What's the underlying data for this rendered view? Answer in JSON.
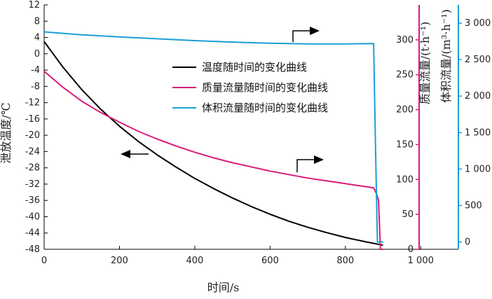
{
  "chart_data": {
    "type": "line",
    "xlabel": "时间/s",
    "x_ticks": [
      0,
      200,
      400,
      600,
      800,
      1000
    ],
    "x_tick_labels": [
      "0",
      "200",
      "400",
      "600",
      "800",
      "1 000"
    ],
    "xlim": [
      0,
      1100
    ],
    "axes": {
      "left": {
        "label": "泄放温度/℃",
        "ylim": [
          -48,
          12
        ],
        "ticks": [
          12,
          8,
          4,
          0,
          -4,
          -8,
          -12,
          -16,
          -20,
          -24,
          -28,
          -32,
          -36,
          -40,
          -44,
          -48
        ],
        "tick_labels": [
          "12",
          "8",
          "4",
          "0",
          "-4",
          "-8",
          "-12",
          "-16",
          "-20",
          "-24",
          "-28",
          "-32",
          "-36",
          "-40",
          "-44",
          "-48"
        ],
        "color": "#000000"
      },
      "right1": {
        "label": "质量流量/(t·h⁻¹)",
        "ylim": [
          0,
          350
        ],
        "ticks": [
          0,
          50,
          100,
          150,
          200,
          250,
          300
        ],
        "tick_labels": [
          "0",
          "50",
          "100",
          "150",
          "200",
          "250",
          "300"
        ],
        "color": "#d81b7a"
      },
      "right2": {
        "label": "体积流量/(m³·h⁻¹)",
        "ylim": [
          -100,
          3250
        ],
        "ticks": [
          0,
          500,
          1000,
          1500,
          2000,
          2500,
          3000
        ],
        "tick_labels": [
          "0",
          "500",
          "1 000",
          "1 500",
          "2 000",
          "2 500",
          "3 000"
        ],
        "color": "#1a9fd4"
      }
    },
    "series": [
      {
        "name": "温度随时间的变化曲线",
        "axis": "left",
        "color": "#000000",
        "x": [
          0,
          50,
          100,
          150,
          200,
          250,
          300,
          350,
          400,
          450,
          500,
          550,
          600,
          650,
          700,
          750,
          800,
          850,
          900
        ],
        "y": [
          3,
          -3.3,
          -8.8,
          -13.6,
          -17.8,
          -21.5,
          -24.8,
          -27.8,
          -30.6,
          -33.1,
          -35.4,
          -37.5,
          -39.4,
          -41.1,
          -42.6,
          -43.9,
          -45.1,
          -46.1,
          -47
        ]
      },
      {
        "name": "质量流量随时间的变化曲线",
        "axis": "right1",
        "color": "#d81b7a",
        "x": [
          0,
          50,
          100,
          150,
          200,
          250,
          300,
          350,
          400,
          450,
          500,
          550,
          600,
          650,
          700,
          750,
          800,
          850,
          875,
          882,
          888,
          893,
          900
        ],
        "y": [
          255,
          232,
          212,
          196,
          182,
          169,
          158,
          148,
          139,
          131,
          124,
          118,
          112,
          107,
          102,
          98,
          94,
          90,
          88,
          80,
          70,
          0,
          0
        ]
      },
      {
        "name": "体积流量随时间的变化曲线",
        "axis": "right2",
        "color": "#1a9fd4",
        "x": [
          0,
          100,
          200,
          300,
          400,
          500,
          600,
          700,
          800,
          875,
          880,
          885,
          888,
          900
        ],
        "y": [
          2880,
          2840,
          2810,
          2785,
          2760,
          2740,
          2725,
          2715,
          2715,
          2720,
          1300,
          0,
          0,
          0
        ]
      }
    ],
    "legend": {
      "placement": "center",
      "entries": [
        "温度随时间的变化曲线",
        "质量流量随时间的变化曲线",
        "体积流量随时间的变化曲线"
      ]
    },
    "annotations": [
      {
        "type": "arrow",
        "direction": "left",
        "target_axis": "left"
      },
      {
        "type": "arrow",
        "direction": "right",
        "target_axis": "right1"
      },
      {
        "type": "arrow",
        "direction": "right",
        "target_axis": "right2"
      }
    ]
  }
}
